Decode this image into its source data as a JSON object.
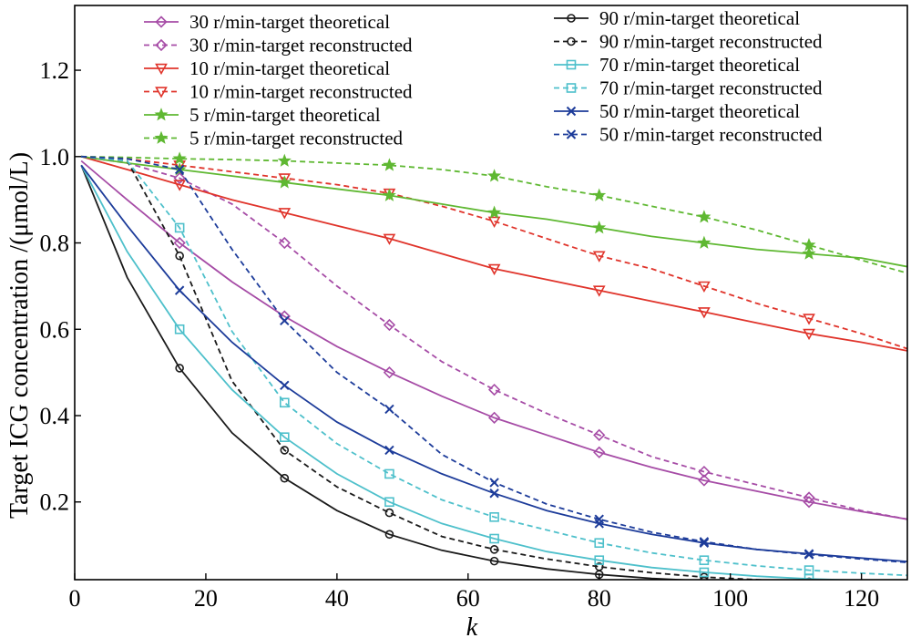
{
  "chart_data": {
    "type": "line",
    "xlabel": "k",
    "ylabel": "Target ICG concentration /(μmol/L)",
    "xlim": [
      0,
      127
    ],
    "ylim": [
      0.02,
      1.35
    ],
    "x_ticks": [
      0,
      20,
      40,
      60,
      80,
      100,
      120
    ],
    "y_ticks": [
      0.2,
      0.4,
      0.6,
      0.8,
      1.0,
      1.2
    ],
    "y_tick_labels": [
      "0.2",
      "0.4",
      "0.6",
      "0.8",
      "1.0",
      "1.2"
    ],
    "legend_position": "top (two columns)",
    "x": [
      1,
      8,
      16,
      24,
      32,
      40,
      48,
      56,
      64,
      72,
      80,
      88,
      96,
      104,
      112,
      120,
      127
    ],
    "series": [
      {
        "name": "30 r/min-target theoretical",
        "color": "#a64ca6",
        "dash": false,
        "marker": "diamond",
        "values": [
          0.99,
          0.9,
          0.8,
          0.71,
          0.63,
          0.56,
          0.5,
          0.445,
          0.395,
          0.355,
          0.315,
          0.28,
          0.25,
          0.225,
          0.2,
          0.178,
          0.16
        ]
      },
      {
        "name": "30 r/min-target reconstructed",
        "color": "#a64ca6",
        "dash": true,
        "marker": "diamond",
        "values": [
          1.0,
          0.985,
          0.95,
          0.89,
          0.8,
          0.7,
          0.61,
          0.525,
          0.46,
          0.405,
          0.355,
          0.305,
          0.27,
          0.24,
          0.21,
          0.18,
          0.16
        ]
      },
      {
        "name": "10 r/min-target theoretical",
        "color": "#e0342b",
        "dash": false,
        "marker": "triangle-down",
        "values": [
          1.0,
          0.97,
          0.935,
          0.9,
          0.87,
          0.84,
          0.81,
          0.775,
          0.74,
          0.715,
          0.69,
          0.665,
          0.64,
          0.615,
          0.59,
          0.57,
          0.55
        ]
      },
      {
        "name": "10 r/min-target reconstructed",
        "color": "#e0342b",
        "dash": true,
        "marker": "triangle-down",
        "values": [
          1.0,
          0.995,
          0.98,
          0.965,
          0.95,
          0.935,
          0.915,
          0.885,
          0.85,
          0.81,
          0.77,
          0.74,
          0.7,
          0.66,
          0.625,
          0.59,
          0.555
        ]
      },
      {
        "name": "5 r/min-target theoretical",
        "color": "#5fb832",
        "dash": false,
        "marker": "star",
        "values": [
          1.0,
          0.985,
          0.97,
          0.955,
          0.94,
          0.925,
          0.91,
          0.89,
          0.87,
          0.855,
          0.835,
          0.815,
          0.8,
          0.785,
          0.775,
          0.765,
          0.745
        ]
      },
      {
        "name": "5 r/min-target reconstructed",
        "color": "#5fb832",
        "dash": true,
        "marker": "star",
        "values": [
          1.0,
          0.998,
          0.995,
          0.993,
          0.99,
          0.985,
          0.98,
          0.97,
          0.955,
          0.93,
          0.91,
          0.885,
          0.86,
          0.83,
          0.795,
          0.76,
          0.73
        ]
      },
      {
        "name": "90 r/min-target theoretical",
        "color": "#1a1a1a",
        "dash": false,
        "marker": "circle",
        "values": [
          0.98,
          0.72,
          0.51,
          0.36,
          0.255,
          0.18,
          0.125,
          0.088,
          0.063,
          0.045,
          0.032,
          0.023,
          0.017,
          0.013,
          0.01,
          0.008,
          0.007
        ]
      },
      {
        "name": "90 r/min-target reconstructed",
        "color": "#1a1a1a",
        "dash": true,
        "marker": "circle",
        "values": [
          1.0,
          0.99,
          0.77,
          0.48,
          0.32,
          0.235,
          0.175,
          0.12,
          0.09,
          0.068,
          0.05,
          0.036,
          0.026,
          0.02,
          0.015,
          0.012,
          0.01
        ]
      },
      {
        "name": "70 r/min-target theoretical",
        "color": "#4ec0cb",
        "dash": false,
        "marker": "square",
        "values": [
          0.98,
          0.78,
          0.6,
          0.46,
          0.35,
          0.265,
          0.2,
          0.15,
          0.115,
          0.085,
          0.065,
          0.048,
          0.037,
          0.028,
          0.022,
          0.018,
          0.015
        ]
      },
      {
        "name": "70 r/min-target reconstructed",
        "color": "#4ec0cb",
        "dash": true,
        "marker": "square",
        "values": [
          1.0,
          0.99,
          0.835,
          0.595,
          0.43,
          0.335,
          0.265,
          0.205,
          0.165,
          0.135,
          0.105,
          0.082,
          0.065,
          0.052,
          0.042,
          0.035,
          0.03
        ]
      },
      {
        "name": "50 r/min-target theoretical",
        "color": "#1d3c9a",
        "dash": false,
        "marker": "x",
        "values": [
          0.98,
          0.84,
          0.69,
          0.57,
          0.47,
          0.385,
          0.32,
          0.265,
          0.22,
          0.18,
          0.15,
          0.125,
          0.105,
          0.09,
          0.08,
          0.07,
          0.062
        ]
      },
      {
        "name": "50 r/min-target reconstructed",
        "color": "#1d3c9a",
        "dash": true,
        "marker": "x",
        "values": [
          1.0,
          0.995,
          0.97,
          0.785,
          0.62,
          0.5,
          0.415,
          0.31,
          0.245,
          0.195,
          0.16,
          0.13,
          0.108,
          0.09,
          0.078,
          0.068,
          0.06
        ]
      }
    ],
    "legend_columns": [
      [
        "30 r/min-target theoretical",
        "30 r/min-target reconstructed",
        "10 r/min-target theoretical",
        "10 r/min-target reconstructed",
        "5 r/min-target theoretical",
        "5 r/min-target reconstructed"
      ],
      [
        "90 r/min-target theoretical",
        "90 r/min-target reconstructed",
        "70 r/min-target theoretical",
        "70 r/min-target reconstructed",
        "50 r/min-target theoretical",
        "50 r/min-target reconstructed"
      ]
    ]
  }
}
